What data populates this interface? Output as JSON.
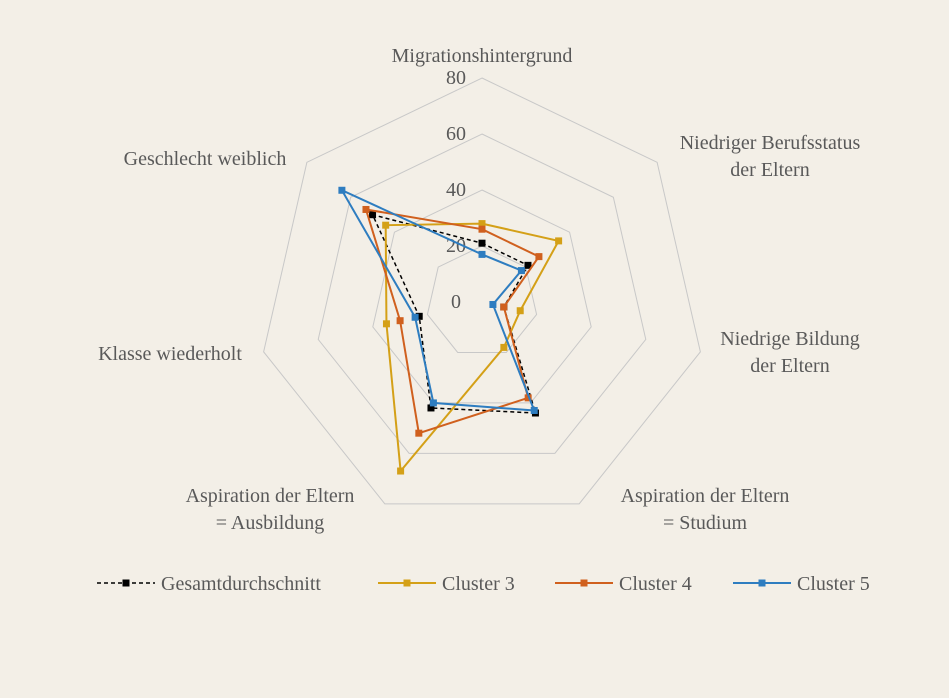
{
  "chart_data": {
    "type": "radar",
    "categories": [
      "Migrationshintergrund",
      "Niedriger Berufsstatus\nder Eltern",
      "Niedrige Bildung\nder Eltern",
      "Aspiration der Eltern\n= Studium",
      "Aspiration der Eltern\n= Ausbildung",
      "Klasse wiederholt",
      "Geschlecht weiblich"
    ],
    "ylim": [
      0,
      80
    ],
    "yticks": [
      0,
      20,
      40,
      60,
      80
    ],
    "grid": true,
    "legend": "bottom",
    "series": [
      {
        "name": "Gesamtdurchschnitt",
        "color": "#000000",
        "dashed": true,
        "values": [
          21,
          21,
          8,
          44,
          42,
          23,
          50
        ]
      },
      {
        "name": "Cluster 3",
        "color": "#d4a017",
        "values": [
          28,
          35,
          14,
          18,
          67,
          35,
          44
        ]
      },
      {
        "name": "Cluster 4",
        "color": "#d0601e",
        "values": [
          26,
          26,
          8,
          38,
          52,
          30,
          53
        ]
      },
      {
        "name": "Cluster 5",
        "color": "#2e7dc0",
        "values": [
          17,
          18,
          4,
          43,
          40,
          24.5,
          64
        ]
      }
    ]
  }
}
